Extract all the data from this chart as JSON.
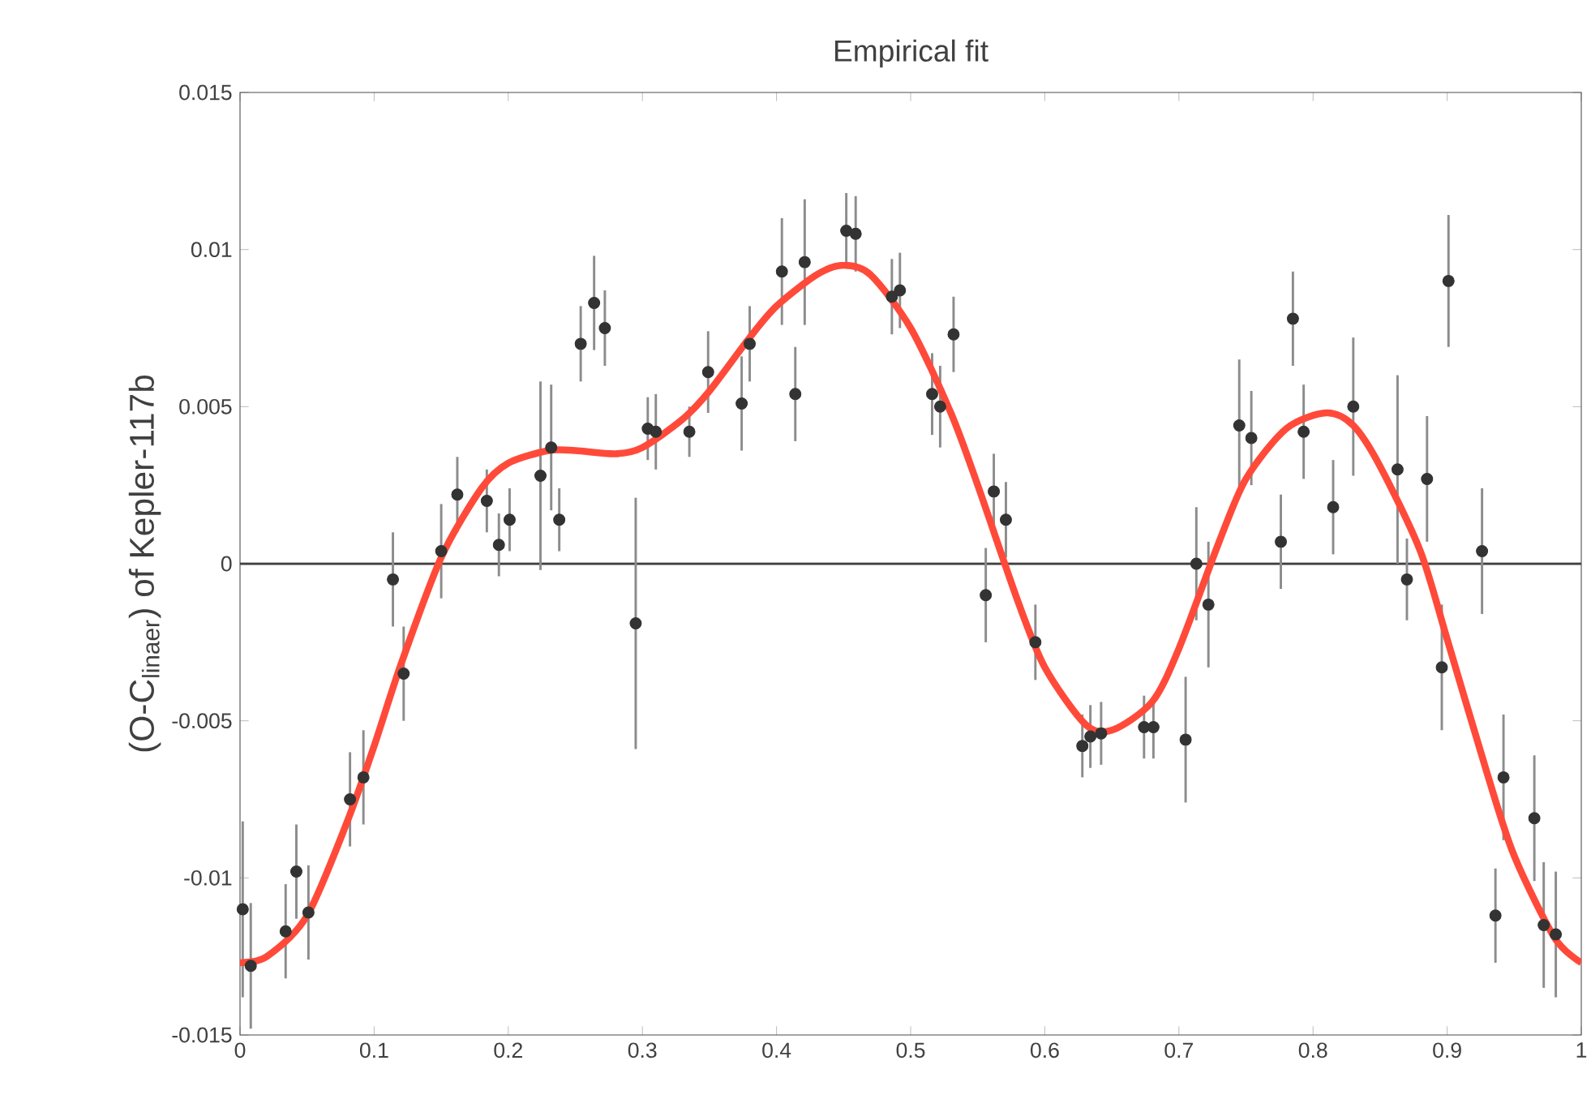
{
  "chart_data": {
    "type": "scatter",
    "title": "Empirical fit",
    "ylabel": "(O-C$_{linaer}$) of Kepler-117b",
    "xlim": [
      0,
      1
    ],
    "ylim": [
      -0.015,
      0.015
    ],
    "xticks": [
      0,
      0.1,
      0.2,
      0.3,
      0.4,
      0.5,
      0.6,
      0.7,
      0.8,
      0.9,
      1
    ],
    "yticks": [
      -0.015,
      -0.01,
      -0.005,
      0,
      0.005,
      0.01,
      0.015
    ],
    "grid": false,
    "marker": "circle",
    "ref_lines": [
      {
        "axis": "y",
        "value": 0,
        "color": "#404040"
      }
    ],
    "series": [
      {
        "type": "scatter",
        "color": "#333333",
        "x": [
          0.002,
          0.008,
          0.034,
          0.042,
          0.051,
          0.082,
          0.092,
          0.114,
          0.122,
          0.15,
          0.162,
          0.184,
          0.193,
          0.201,
          0.224,
          0.232,
          0.238,
          0.254,
          0.264,
          0.272,
          0.295,
          0.304,
          0.31,
          0.335,
          0.349,
          0.374,
          0.38,
          0.404,
          0.414,
          0.421,
          0.452,
          0.459,
          0.486,
          0.492,
          0.516,
          0.522,
          0.532,
          0.556,
          0.562,
          0.571,
          0.593,
          0.628,
          0.634,
          0.642,
          0.674,
          0.681,
          0.705,
          0.713,
          0.722,
          0.745,
          0.754,
          0.776,
          0.785,
          0.793,
          0.815,
          0.83,
          0.863,
          0.87,
          0.885,
          0.896,
          0.901,
          0.926,
          0.936,
          0.942,
          0.965,
          0.972,
          0.981
        ],
        "values": [
          -0.011,
          -0.0128,
          -0.0117,
          -0.0098,
          -0.0111,
          -0.0075,
          -0.0068,
          -0.0005,
          -0.0035,
          0.0004,
          0.0022,
          0.002,
          0.0006,
          0.0014,
          0.0028,
          0.0037,
          0.0014,
          0.007,
          0.0083,
          0.0075,
          -0.0019,
          0.0043,
          0.0042,
          0.0042,
          0.0061,
          0.0051,
          0.007,
          0.0093,
          0.0054,
          0.0096,
          0.0106,
          0.0105,
          0.0085,
          0.0087,
          0.0054,
          0.005,
          0.0073,
          -0.001,
          0.0023,
          0.0014,
          -0.0025,
          -0.0058,
          -0.0055,
          -0.0054,
          -0.0052,
          -0.0052,
          -0.0056,
          0,
          -0.0013,
          0.0044,
          0.004,
          0.0007,
          0.0078,
          0.0042,
          0.0018,
          0.005,
          0.003,
          -0.0005,
          0.0027,
          -0.0033,
          0.009,
          0.0004,
          -0.0112,
          -0.0068,
          -0.0081,
          -0.0115,
          -0.0118
        ],
        "errors": [
          0.0028,
          0.002,
          0.0015,
          0.0015,
          0.0015,
          0.0015,
          0.0015,
          0.0015,
          0.0015,
          0.0015,
          0.0012,
          0.001,
          0.001,
          0.001,
          0.003,
          0.002,
          0.001,
          0.0012,
          0.0015,
          0.0012,
          0.004,
          0.001,
          0.0012,
          0.0008,
          0.0013,
          0.0015,
          0.0012,
          0.0017,
          0.0015,
          0.002,
          0.0012,
          0.0012,
          0.0012,
          0.0012,
          0.0013,
          0.0013,
          0.0012,
          0.0015,
          0.0012,
          0.0012,
          0.0012,
          0.001,
          0.001,
          0.001,
          0.001,
          0.001,
          0.002,
          0.0018,
          0.002,
          0.0021,
          0.0015,
          0.0015,
          0.0015,
          0.0015,
          0.0015,
          0.0022,
          0.003,
          0.0013,
          0.002,
          0.002,
          0.0021,
          0.002,
          0.0015,
          0.002,
          0.002,
          0.002,
          0.002
        ]
      },
      {
        "type": "line",
        "line_style": "solid",
        "marker": "none",
        "color": "#ff4a3a",
        "x": [
          0,
          0.02,
          0.05,
          0.08,
          0.1,
          0.12,
          0.15,
          0.18,
          0.2,
          0.23,
          0.25,
          0.28,
          0.3,
          0.33,
          0.35,
          0.38,
          0.4,
          0.43,
          0.45,
          0.47,
          0.5,
          0.53,
          0.55,
          0.58,
          0.6,
          0.63,
          0.65,
          0.68,
          0.7,
          0.73,
          0.75,
          0.78,
          0.81,
          0.83,
          0.85,
          0.88,
          0.9,
          0.93,
          0.95,
          0.98,
          1
        ],
        "values": [
          -0.0127,
          -0.0125,
          -0.0112,
          -0.0082,
          -0.0058,
          -0.0032,
          0.0002,
          0.0024,
          0.0032,
          0.0036,
          0.0036,
          0.0035,
          0.0037,
          0.0046,
          0.0055,
          0.0072,
          0.0082,
          0.0092,
          0.0095,
          0.0092,
          0.0075,
          0.0048,
          0.0025,
          -0.0012,
          -0.0033,
          -0.0051,
          -0.0053,
          -0.0044,
          -0.0027,
          0.0007,
          0.0027,
          0.0043,
          0.0048,
          0.0044,
          0.0031,
          0.0004,
          -0.0024,
          -0.0067,
          -0.0093,
          -0.0119,
          -0.0127
        ]
      }
    ]
  }
}
